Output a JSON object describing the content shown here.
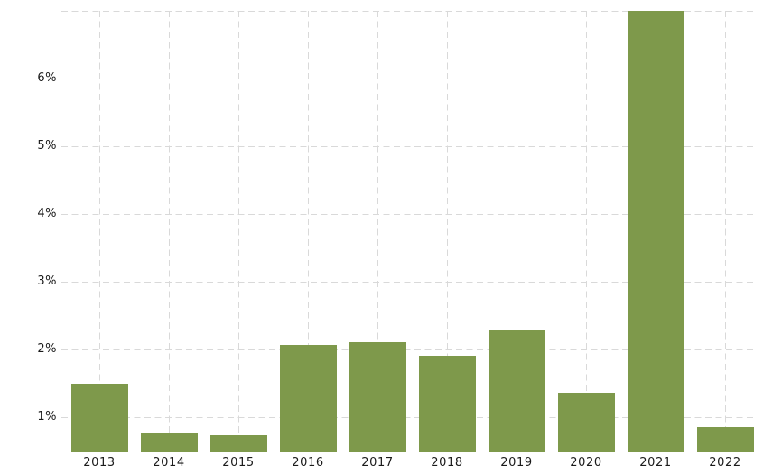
{
  "chart_data": {
    "type": "bar",
    "title": "",
    "xlabel": "",
    "ylabel": "",
    "unit": "%",
    "categories": [
      "2013",
      "2014",
      "2015",
      "2016",
      "2017",
      "2018",
      "2019",
      "2020",
      "2021",
      "2022"
    ],
    "values": [
      1.5,
      0.76,
      0.73,
      2.07,
      2.11,
      1.91,
      2.29,
      1.36,
      7.0,
      0.86
    ],
    "yticks": [
      {
        "value": 1,
        "label": "1%"
      },
      {
        "value": 2,
        "label": "2%"
      },
      {
        "value": 3,
        "label": "3%"
      },
      {
        "value": 4,
        "label": "4%"
      },
      {
        "value": 5,
        "label": "5%"
      },
      {
        "value": 6,
        "label": "6%"
      },
      {
        "value": 7,
        "label": ""
      }
    ],
    "ylim": [
      0.49,
      7.0
    ],
    "grid": {
      "style": "dashed",
      "horizontal": true,
      "vertical": true
    },
    "legend": "none",
    "colors": {
      "bar": "#7e994b",
      "grid": "#d9d9d9",
      "text": "#1a1a1a",
      "background": "#ffffff"
    }
  }
}
